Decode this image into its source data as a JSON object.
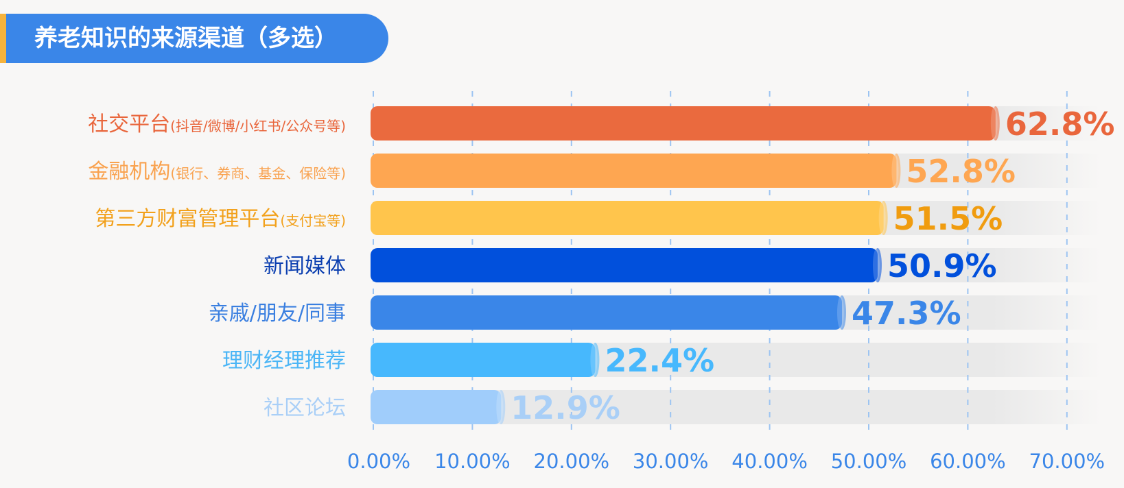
{
  "title": "养老知识的来源渠道（多选）",
  "chart_data": {
    "type": "bar",
    "orientation": "horizontal",
    "title": "养老知识的来源渠道（多选）",
    "xlabel": "",
    "ylabel": "",
    "xlim": [
      0,
      70
    ],
    "grid": true,
    "ticks": [
      "0.00%",
      "10.00%",
      "20.00%",
      "30.00%",
      "40.00%",
      "50.00%",
      "60.00%",
      "70.00%"
    ],
    "categories": [
      {
        "main": "社交平台",
        "sub": "(抖音/微博/小红书/公众号等)"
      },
      {
        "main": "金融机构",
        "sub": "(银行、券商、基金、保险等)"
      },
      {
        "main": "第三方财富管理平台",
        "sub": "(支付宝等)"
      },
      {
        "main": "新闻媒体",
        "sub": ""
      },
      {
        "main": "亲戚/朋友/同事",
        "sub": ""
      },
      {
        "main": "理财经理推荐",
        "sub": ""
      },
      {
        "main": "社区论坛",
        "sub": ""
      }
    ],
    "values": [
      62.8,
      52.8,
      51.5,
      50.9,
      47.3,
      22.4,
      12.9
    ],
    "value_labels": [
      "62.8%",
      "52.8%",
      "51.5%",
      "50.9%",
      "47.3%",
      "22.4%",
      "12.9%"
    ],
    "colors": {
      "bars": [
        "#ea6a3e",
        "#fea651",
        "#ffc54c",
        "#0150dc",
        "#3a86e8",
        "#47b8fd",
        "#a0cdfb"
      ],
      "labels": [
        "#e9663c",
        "#f9a24f",
        "#f2a11c",
        "#0c3fb0",
        "#3a7fe0",
        "#4ab5f6",
        "#a9cff7"
      ],
      "values": [
        "#e9663c",
        "#fea651",
        "#f09c0f",
        "#0150dc",
        "#3a86e8",
        "#47b8fd",
        "#a9cff7"
      ],
      "ticks": "#3a86e8",
      "grid": "#9cc4f2",
      "track": "#e9e9e9"
    }
  }
}
